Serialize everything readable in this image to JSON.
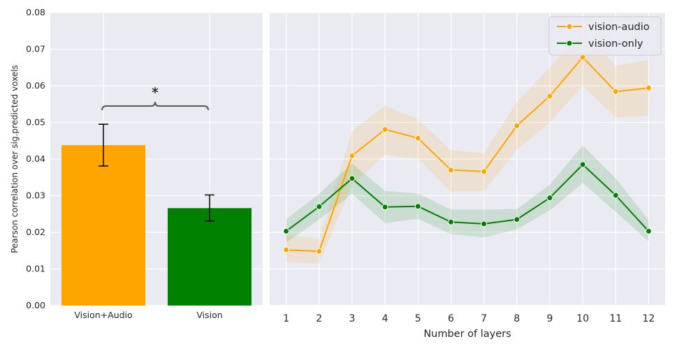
{
  "chart_data": [
    {
      "type": "bar",
      "categories": [
        "Vision+Audio",
        "Vision"
      ],
      "values": [
        0.0438,
        0.0266
      ],
      "error": [
        [
          0.0381,
          0.0495
        ],
        [
          0.0231,
          0.0302
        ]
      ],
      "colors": [
        "#ffa500",
        "#008000"
      ],
      "ylabel": "Pearson correlation over sig.predicted voxels",
      "xlabel": "",
      "ylim": [
        0,
        0.08
      ],
      "yticks": [
        "0.00",
        "0.01",
        "0.02",
        "0.03",
        "0.04",
        "0.05",
        "0.06",
        "0.07",
        "0.08"
      ],
      "annotation": "*",
      "grid": true
    },
    {
      "type": "line",
      "x": [
        1,
        2,
        3,
        4,
        5,
        6,
        7,
        8,
        9,
        10,
        11,
        12
      ],
      "xticks": [
        "1",
        "2",
        "3",
        "4",
        "5",
        "6",
        "7",
        "8",
        "9",
        "10",
        "11",
        "12"
      ],
      "xlabel": "Number of layers",
      "ylim": [
        0,
        0.08
      ],
      "legend_position": "top-right",
      "grid": true,
      "series": [
        {
          "name": "vision-audio",
          "color": "#ffa500",
          "values": [
            0.0152,
            0.0148,
            0.0409,
            0.0481,
            0.0457,
            0.037,
            0.0366,
            0.0491,
            0.0572,
            0.0678,
            0.0584,
            0.0594
          ],
          "lower": [
            0.0118,
            0.0114,
            0.033,
            0.0412,
            0.04,
            0.0312,
            0.0312,
            0.0425,
            0.05,
            0.06,
            0.0514,
            0.0518
          ],
          "upper": [
            0.0192,
            0.0182,
            0.0477,
            0.0546,
            0.0508,
            0.0424,
            0.0416,
            0.0556,
            0.065,
            0.075,
            0.0654,
            0.067
          ]
        },
        {
          "name": "vision-only",
          "color": "#008000",
          "values": [
            0.0203,
            0.027,
            0.0347,
            0.0269,
            0.0271,
            0.0228,
            0.0223,
            0.0235,
            0.0294,
            0.0385,
            0.0301,
            0.0203
          ],
          "lower": [
            0.0172,
            0.0235,
            0.0305,
            0.0225,
            0.0237,
            0.0195,
            0.0186,
            0.0208,
            0.026,
            0.0334,
            0.0256,
            0.0175
          ],
          "upper": [
            0.0236,
            0.0305,
            0.0388,
            0.0313,
            0.0306,
            0.0262,
            0.0262,
            0.0263,
            0.033,
            0.0437,
            0.0347,
            0.0233
          ]
        }
      ]
    }
  ]
}
